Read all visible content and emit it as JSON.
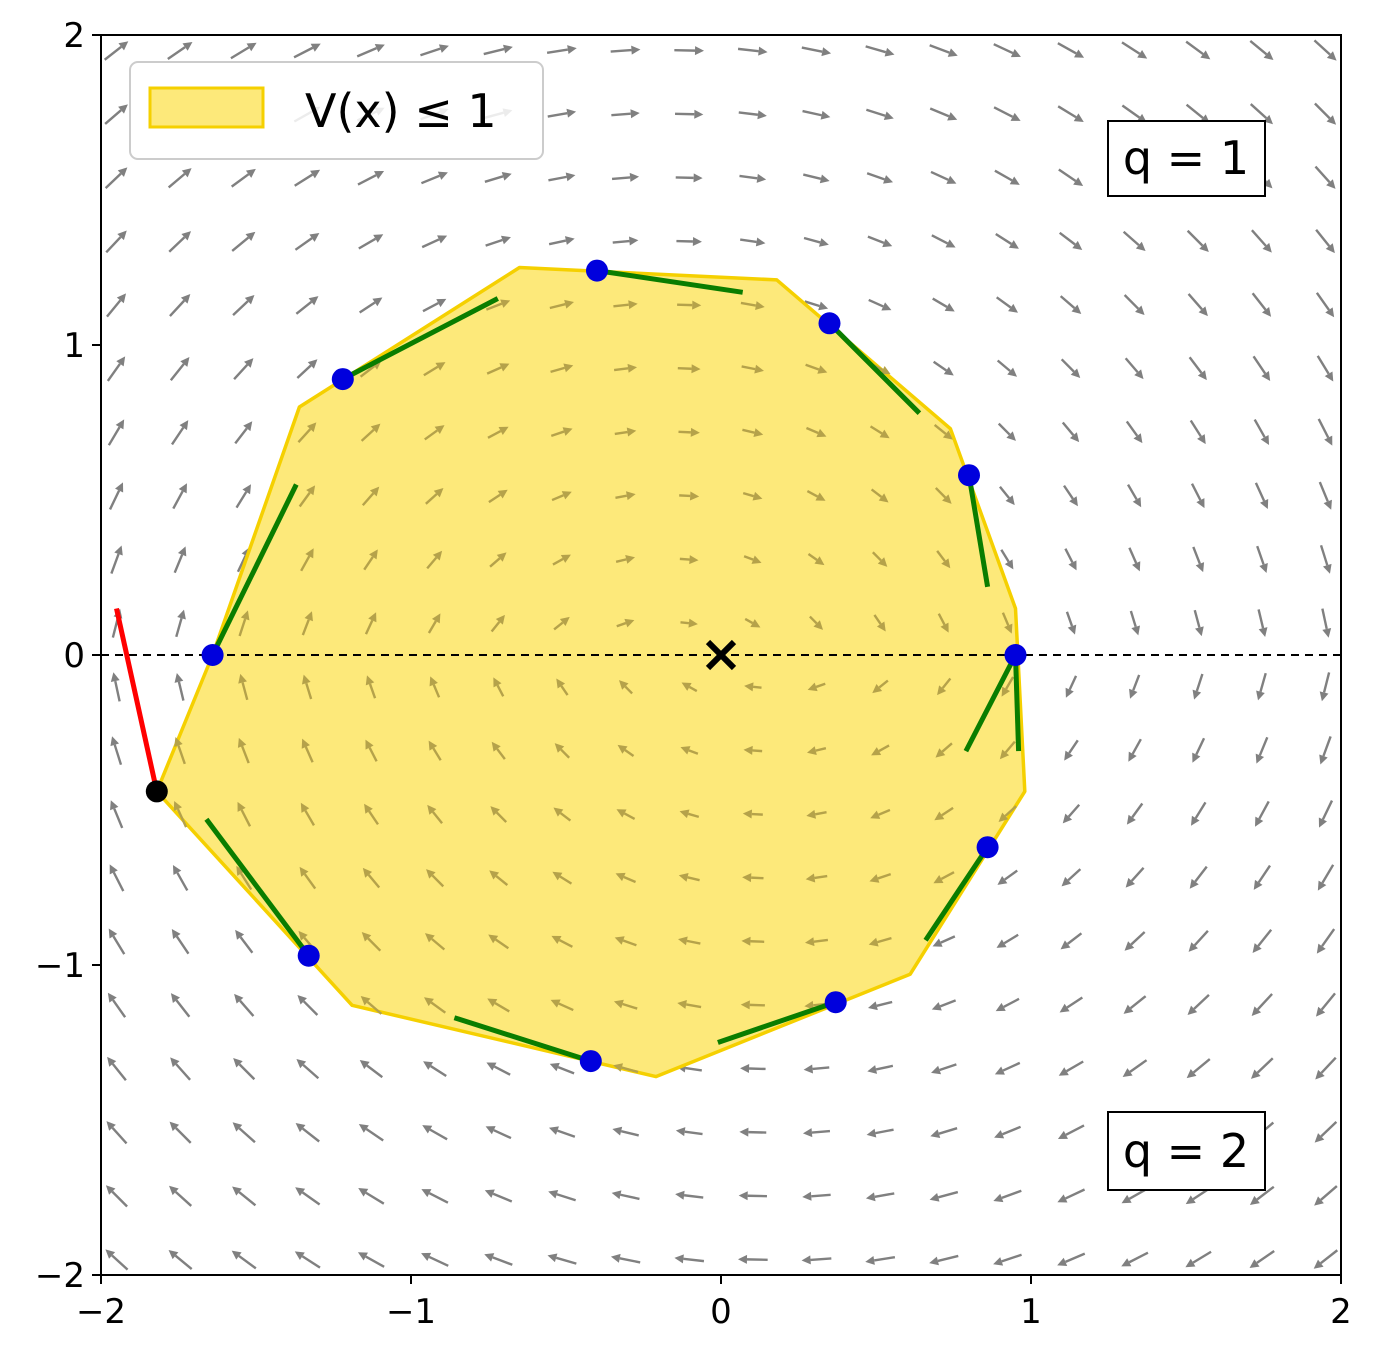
{
  "chart_data": {
    "type": "scatter",
    "xlim": [
      -2,
      2
    ],
    "ylim": [
      -2,
      2
    ],
    "x_ticks": [
      {
        "value": -2,
        "label": "−2"
      },
      {
        "value": -1,
        "label": "−1"
      },
      {
        "value": 0,
        "label": "0"
      },
      {
        "value": 1,
        "label": "1"
      },
      {
        "value": 2,
        "label": "2"
      }
    ],
    "y_ticks": [
      {
        "value": -2,
        "label": "−2"
      },
      {
        "value": -1,
        "label": "−1"
      },
      {
        "value": 0,
        "label": "0"
      },
      {
        "value": 1,
        "label": "1"
      },
      {
        "value": 2,
        "label": "2"
      }
    ],
    "grid": false,
    "legend": {
      "position": "upper-left",
      "label": "V(x) ≤ 1"
    },
    "annotations": [
      {
        "text": "q = 1",
        "position": "upper-right"
      },
      {
        "text": "q = 2",
        "position": "lower-right"
      }
    ],
    "colors": {
      "region_fill": "#fde97a",
      "region_edge": "#f5d000",
      "samples": "#0000dd",
      "tangents": "#0a7d00",
      "violation": "#ff0000",
      "violation_point": "#000000",
      "vector_field": "#808080",
      "vector_field_inside": "#b5a24a"
    },
    "region_polygon": [
      [
        -0.65,
        1.25
      ],
      [
        0.18,
        1.21
      ],
      [
        0.74,
        0.73
      ],
      [
        0.95,
        0.15
      ],
      [
        0.98,
        -0.44
      ],
      [
        0.61,
        -1.03
      ],
      [
        -0.21,
        -1.36
      ],
      [
        -1.19,
        -1.13
      ],
      [
        -1.82,
        -0.44
      ],
      [
        -1.64,
        0.0
      ],
      [
        -1.36,
        0.8
      ]
    ],
    "boundary_samples": [
      [
        -0.4,
        1.24
      ],
      [
        0.35,
        1.07
      ],
      [
        0.8,
        0.58
      ],
      [
        0.95,
        0.0
      ],
      [
        0.86,
        -0.62
      ],
      [
        0.37,
        -1.12
      ],
      [
        -0.42,
        -1.31
      ],
      [
        -1.33,
        -0.97
      ],
      [
        -1.64,
        0.0
      ],
      [
        -1.22,
        0.89
      ]
    ],
    "tangent_segments": [
      [
        [
          -0.4,
          1.24
        ],
        [
          0.07,
          1.17
        ]
      ],
      [
        [
          0.35,
          1.07
        ],
        [
          0.64,
          0.78
        ]
      ],
      [
        [
          0.8,
          0.58
        ],
        [
          0.86,
          0.22
        ]
      ],
      [
        [
          0.95,
          0.0
        ],
        [
          0.96,
          -0.31
        ]
      ],
      [
        [
          0.95,
          0.0
        ],
        [
          0.79,
          -0.31
        ]
      ],
      [
        [
          0.86,
          -0.62
        ],
        [
          0.66,
          -0.92
        ]
      ],
      [
        [
          0.37,
          -1.12
        ],
        [
          -0.01,
          -1.25
        ]
      ],
      [
        [
          -0.42,
          -1.31
        ],
        [
          -0.86,
          -1.17
        ]
      ],
      [
        [
          -1.33,
          -0.97
        ],
        [
          -1.66,
          -0.53
        ]
      ],
      [
        [
          -1.64,
          0.0
        ],
        [
          -1.37,
          0.55
        ]
      ],
      [
        [
          -1.22,
          0.89
        ],
        [
          -0.72,
          1.15
        ]
      ]
    ],
    "violation_point": [
      -1.82,
      -0.44
    ],
    "violation_segment": [
      [
        -1.82,
        -0.44
      ],
      [
        -1.95,
        0.15
      ]
    ],
    "equilibrium": [
      0,
      0
    ],
    "switching_line_y": 0,
    "vector_field": {
      "grid_x": [
        -1.95,
        1.95,
        20
      ],
      "grid_y": [
        -1.95,
        1.95,
        20
      ]
    }
  }
}
